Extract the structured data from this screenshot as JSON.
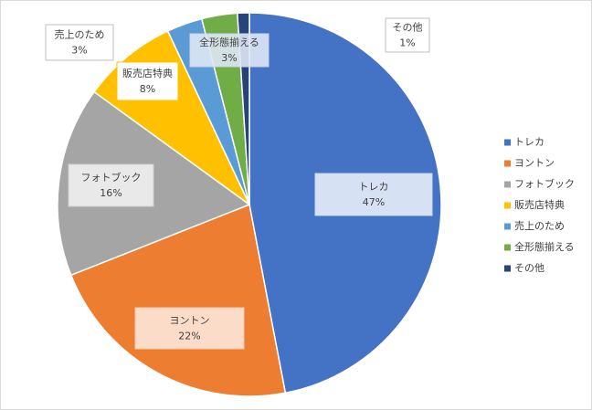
{
  "chart_data": {
    "type": "pie",
    "categories": [
      "トレカ",
      "ヨントン",
      "フォトブック",
      "販売店特典",
      "売上のため",
      "全形態揃える",
      "その他"
    ],
    "values": [
      47,
      22,
      16,
      8,
      3,
      3,
      1
    ],
    "value_labels": [
      "47%",
      "22%",
      "16%",
      "8%",
      "3%",
      "3%",
      "1%"
    ],
    "colors": [
      "#4472c4",
      "#ed7d31",
      "#a5a5a5",
      "#ffc000",
      "#5b9bd5",
      "#70ad47",
      "#264478"
    ],
    "legend": "right"
  }
}
